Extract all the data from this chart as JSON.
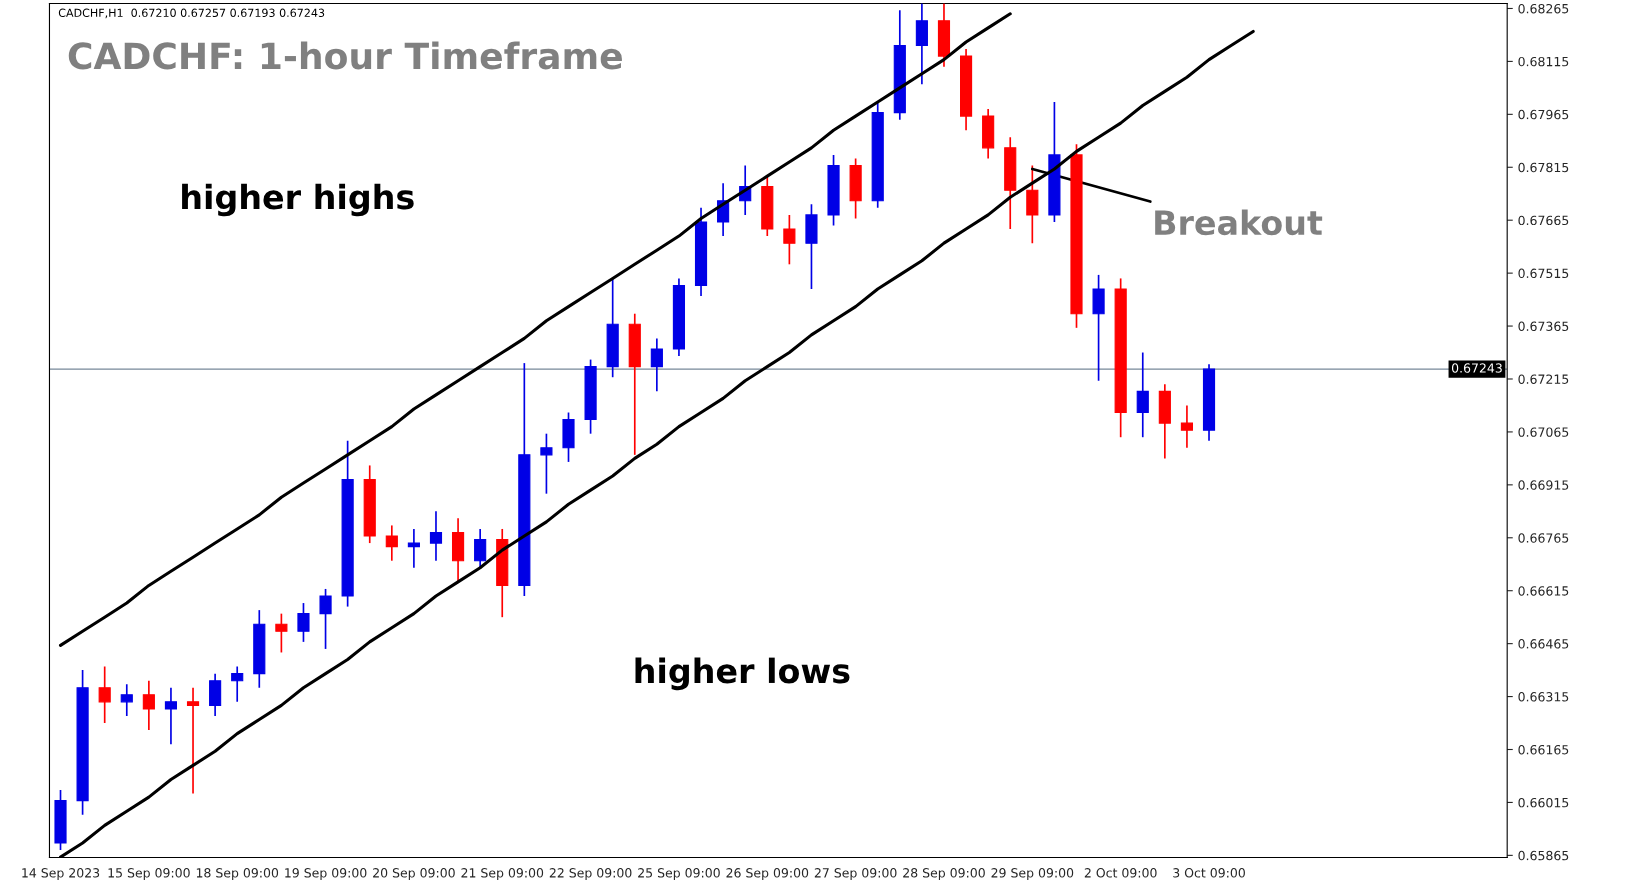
{
  "chart_data": {
    "type": "candlestick",
    "title": "CADCHF: 1-hour Timeframe",
    "subtitle": "CADCHF,H1  0.67210 0.67257 0.67193 0.67243",
    "annotations": [
      "higher highs",
      "higher lows",
      {
        "text": "Breakout",
        "x": "29 Sep 09:00",
        "y": 0.6781
      }
    ],
    "categories": [
      "14 Sep 2023",
      null,
      null,
      null,
      "15 Sep 09:00",
      null,
      null,
      null,
      "18 Sep 09:00",
      null,
      null,
      null,
      "19 Sep 09:00",
      null,
      null,
      null,
      "20 Sep 09:00",
      null,
      null,
      null,
      "21 Sep 09:00",
      null,
      null,
      null,
      "22 Sep 09:00",
      null,
      null,
      null,
      "25 Sep 09:00",
      null,
      null,
      null,
      "26 Sep 09:00",
      null,
      null,
      null,
      "27 Sep 09:00",
      null,
      null,
      null,
      "28 Sep 09:00",
      null,
      null,
      null,
      "29 Sep 09:00",
      null,
      null,
      null,
      "2 Oct 09:00",
      null,
      null,
      null,
      "3 Oct 09:00",
      null,
      null,
      null,
      null,
      null,
      null,
      null,
      null,
      null,
      null,
      null,
      null,
      null
    ],
    "ylim": [
      0.65859,
      0.68279
    ],
    "yticks": [
      0.65865,
      0.66015,
      0.66165,
      0.66315,
      0.66465,
      0.66615,
      0.66765,
      0.66915,
      0.67065,
      0.67215,
      0.67365,
      0.67515,
      0.67665,
      0.67815,
      0.67965,
      0.68115,
      0.68265
    ],
    "ref_lines": [
      {
        "axis": "y",
        "value": 0.67243,
        "label": "0.67243",
        "color": "#778899"
      }
    ],
    "grid": false,
    "series": [
      {
        "colors": [
          "#0000e6",
          "#0000e6",
          "#ff0000",
          "#0000e6",
          "#ff0000",
          "#0000e6",
          "#ff0000",
          "#0000e6",
          "#0000e6",
          "#0000e6",
          "#ff0000",
          "#0000e6",
          "#0000e6",
          "#0000e6",
          "#ff0000",
          "#ff0000",
          "#0000e6",
          "#0000e6",
          "#ff0000",
          "#0000e6",
          "#ff0000",
          "#0000e6",
          "#0000e6",
          "#0000e6",
          "#0000e6",
          "#0000e6",
          "#ff0000",
          "#0000e6",
          "#0000e6",
          "#0000e6",
          "#0000e6",
          "#0000e6",
          "#ff0000",
          "#ff0000",
          "#0000e6",
          "#0000e6",
          "#ff0000",
          "#0000e6",
          "#0000e6",
          "#0000e6",
          "#ff0000",
          "#ff0000",
          "#ff0000",
          "#ff0000",
          "#ff0000",
          "#0000e6",
          "#ff0000",
          "#0000e6",
          "#ff0000",
          "#0000e6",
          "#ff0000",
          "#ff0000",
          "#0000e6",
          null,
          null,
          null,
          null,
          null,
          null,
          null,
          null,
          null,
          null,
          null,
          null,
          null
        ],
        "ohlc": [
          [
            0.659,
            0.6605,
            0.6588,
            0.6602
          ],
          [
            0.6602,
            0.6639,
            0.6598,
            0.6634
          ],
          [
            0.6634,
            0.664,
            0.6624,
            0.663
          ],
          [
            0.663,
            0.6635,
            0.6626,
            0.6632
          ],
          [
            0.6632,
            0.6636,
            0.6622,
            0.6628
          ],
          [
            0.6628,
            0.6634,
            0.6618,
            0.663
          ],
          [
            0.663,
            0.6634,
            0.6604,
            0.6629
          ],
          [
            0.6629,
            0.6638,
            0.6626,
            0.6636
          ],
          [
            0.6636,
            0.664,
            0.663,
            0.6638
          ],
          [
            0.6638,
            0.6656,
            0.6634,
            0.6652
          ],
          [
            0.6652,
            0.6655,
            0.6644,
            0.665
          ],
          [
            0.665,
            0.6658,
            0.6647,
            0.6655
          ],
          [
            0.6655,
            0.6662,
            0.6645,
            0.666
          ],
          [
            0.666,
            0.6704,
            0.6657,
            0.6693
          ],
          [
            0.6693,
            0.6697,
            0.6675,
            0.6677
          ],
          [
            0.6677,
            0.668,
            0.667,
            0.6674
          ],
          [
            0.6674,
            0.6679,
            0.6668,
            0.6675
          ],
          [
            0.6675,
            0.6684,
            0.667,
            0.6678
          ],
          [
            0.6678,
            0.6682,
            0.6664,
            0.667
          ],
          [
            0.667,
            0.6679,
            0.6668,
            0.6676
          ],
          [
            0.6676,
            0.6679,
            0.6654,
            0.6663
          ],
          [
            0.6663,
            0.6726,
            0.666,
            0.67
          ],
          [
            0.67,
            0.6706,
            0.6689,
            0.6702
          ],
          [
            0.6702,
            0.6712,
            0.6698,
            0.671
          ],
          [
            0.671,
            0.6727,
            0.6706,
            0.6725
          ],
          [
            0.6725,
            0.675,
            0.6722,
            0.6737
          ],
          [
            0.6737,
            0.674,
            0.67,
            0.6725
          ],
          [
            0.6725,
            0.6733,
            0.6718,
            0.673
          ],
          [
            0.673,
            0.675,
            0.6728,
            0.6748
          ],
          [
            0.6748,
            0.677,
            0.6745,
            0.6766
          ],
          [
            0.6766,
            0.6777,
            0.6762,
            0.6772
          ],
          [
            0.6772,
            0.6782,
            0.6768,
            0.6776
          ],
          [
            0.6776,
            0.6779,
            0.6762,
            0.6764
          ],
          [
            0.6764,
            0.6768,
            0.6754,
            0.676
          ],
          [
            0.676,
            0.6771,
            0.6747,
            0.6768
          ],
          [
            0.6768,
            0.6785,
            0.6765,
            0.6782
          ],
          [
            0.6782,
            0.6784,
            0.6767,
            0.6772
          ],
          [
            0.6772,
            0.68,
            0.677,
            0.6797
          ],
          [
            0.6797,
            0.6826,
            0.6795,
            0.6816
          ],
          [
            0.6816,
            0.6828,
            0.6805,
            0.6823
          ],
          [
            0.6823,
            0.6828,
            0.681,
            0.6813
          ],
          [
            0.6813,
            0.6815,
            0.6792,
            0.6796
          ],
          [
            0.6796,
            0.6798,
            0.6784,
            0.6787
          ],
          [
            0.6787,
            0.679,
            0.6764,
            0.6775
          ],
          [
            0.6775,
            0.6782,
            0.676,
            0.6768
          ],
          [
            0.6768,
            0.68,
            0.6766,
            0.6785
          ],
          [
            0.6785,
            0.6788,
            0.6736,
            0.674
          ],
          [
            0.674,
            0.6751,
            0.6721,
            0.6747
          ],
          [
            0.6747,
            0.675,
            0.6705,
            0.6712
          ],
          [
            0.6712,
            0.6729,
            0.6705,
            0.6718
          ],
          [
            0.6718,
            0.672,
            0.6699,
            0.6709
          ],
          [
            0.6709,
            0.6714,
            0.6702,
            0.6707
          ],
          [
            0.6707,
            0.67257,
            0.6704,
            0.67243
          ],
          null,
          null,
          null,
          null,
          null,
          null,
          null,
          null,
          null,
          null,
          null,
          null,
          null
        ]
      },
      {
        "type": "line",
        "color": "#000000",
        "values": [
          0.6646,
          0.665,
          0.6654,
          0.6658,
          0.6663,
          0.6667,
          0.6671,
          0.6675,
          0.6679,
          0.6683,
          0.6688,
          0.6692,
          0.6696,
          0.67,
          0.6704,
          0.6708,
          0.6713,
          0.6717,
          0.6721,
          0.6725,
          0.6729,
          0.6733,
          0.6738,
          0.6742,
          0.6746,
          0.675,
          0.6754,
          0.6758,
          0.6762,
          0.6767,
          0.6771,
          0.6775,
          0.6779,
          0.6783,
          0.6787,
          0.6792,
          0.6796,
          0.68,
          0.6804,
          0.6808,
          0.6812,
          0.6817,
          0.6821,
          0.6825,
          null,
          null,
          null,
          null,
          null,
          null,
          null,
          null,
          null,
          null,
          null,
          null,
          null,
          null,
          null,
          null,
          null,
          null,
          null,
          null,
          null,
          null
        ]
      },
      {
        "type": "line",
        "color": "#000000",
        "values": [
          0.6586,
          0.659,
          0.6595,
          0.6599,
          0.6603,
          0.6608,
          0.6612,
          0.6616,
          0.6621,
          0.6625,
          0.6629,
          0.6634,
          0.6638,
          0.6642,
          0.6647,
          0.6651,
          0.6655,
          0.666,
          0.6664,
          0.6668,
          0.6673,
          0.6677,
          0.6681,
          0.6686,
          0.669,
          0.6694,
          0.6699,
          0.6703,
          0.6708,
          0.6712,
          0.6716,
          0.6721,
          0.6725,
          0.6729,
          0.6734,
          0.6738,
          0.6742,
          0.6747,
          0.6751,
          0.6755,
          0.676,
          0.6764,
          0.6768,
          0.6773,
          0.6777,
          0.6781,
          0.6786,
          0.679,
          0.6794,
          0.6799,
          0.6803,
          0.6807,
          0.6812,
          0.6816,
          0.682,
          null,
          null,
          null,
          null,
          null,
          null,
          null,
          null,
          null,
          null,
          null
        ]
      }
    ]
  }
}
